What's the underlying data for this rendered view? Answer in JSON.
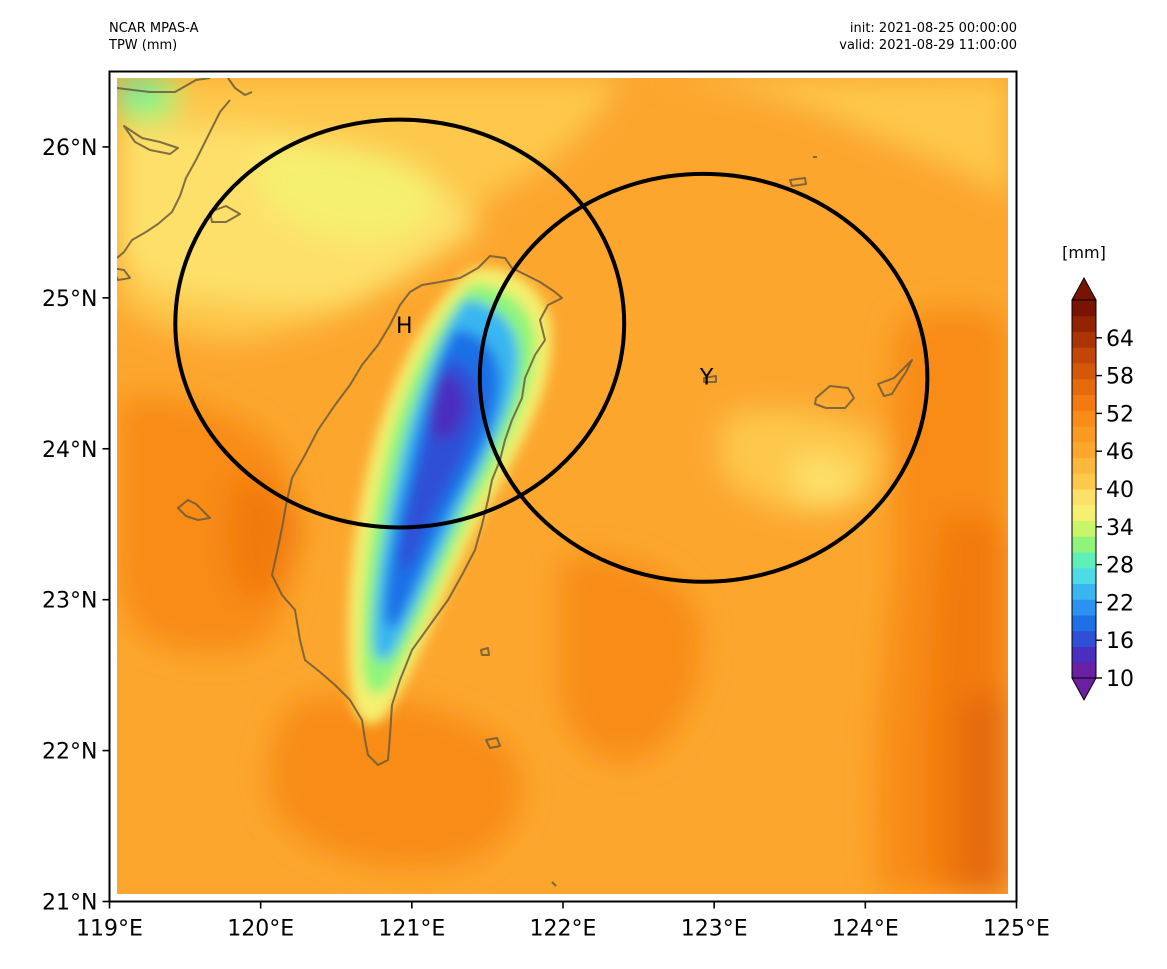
{
  "header": {
    "left_line1": "NCAR MPAS-A",
    "left_line2": "TPW (mm)",
    "right_line1": "init: 2021-08-25 00:00:00",
    "right_line2": "valid: 2021-08-29 11:00:00"
  },
  "map": {
    "lon_range": [
      119,
      125
    ],
    "lat_range": [
      21,
      26.5
    ],
    "x_ticks": [
      "119°E",
      "120°E",
      "121°E",
      "122°E",
      "123°E",
      "124°E",
      "125°E"
    ],
    "y_ticks": [
      "21°N",
      "22°N",
      "23°N",
      "24°N",
      "25°N",
      "26°N"
    ],
    "background_color": "#fca62e",
    "coastline_color": "#6b5a3c",
    "markers": [
      {
        "label": "H",
        "lon": 120.95,
        "lat": 24.82
      },
      {
        "label": "Y",
        "lon": 122.95,
        "lat": 24.48
      }
    ],
    "circles": [
      {
        "center_lon": 120.92,
        "center_lat": 24.83,
        "radius_km": 150
      },
      {
        "center_lon": 122.93,
        "center_lat": 24.47,
        "radius_km": 150
      }
    ]
  },
  "colorbar": {
    "unit": "[mm]",
    "ticks": [
      "10",
      "16",
      "22",
      "28",
      "34",
      "40",
      "46",
      "52",
      "58",
      "64"
    ],
    "range": [
      10,
      70
    ],
    "colors": [
      "#6b1fa3",
      "#4a2fbf",
      "#2f4fd6",
      "#1f6fe6",
      "#2a93f0",
      "#39b6f2",
      "#4ddce6",
      "#5ef0b8",
      "#8ef57a",
      "#c8f56a",
      "#f5f070",
      "#fde06a",
      "#fdc84c",
      "#fcb83c",
      "#fca62e",
      "#fb9a22",
      "#f88c18",
      "#f27a10",
      "#e56a0c",
      "#d45808",
      "#c24606",
      "#aa3404",
      "#922402",
      "#7a1402"
    ]
  }
}
